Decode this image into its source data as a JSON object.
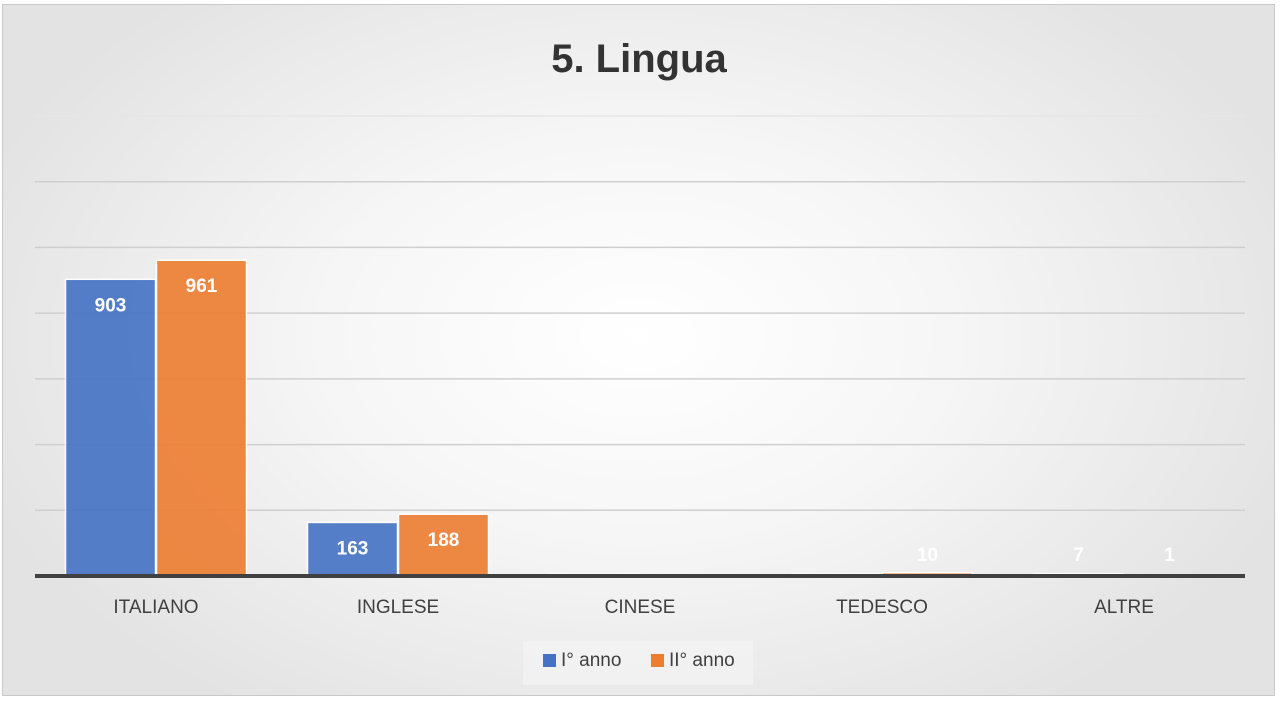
{
  "chart_data": {
    "type": "bar",
    "title": "5. Lingua",
    "xlabel": "",
    "ylabel": "",
    "categories": [
      "ITALIANO",
      "INGLESE",
      "CINESE",
      "TEDESCO",
      "ALTRE"
    ],
    "series": [
      {
        "name": "I° anno",
        "values": [
          903,
          163,
          6,
          6,
          7
        ],
        "labels": [
          "903",
          "163",
          "",
          "",
          "7"
        ],
        "color": "#4472c4"
      },
      {
        "name": "II° anno",
        "values": [
          961,
          188,
          1,
          10,
          1
        ],
        "labels": [
          "961",
          "188",
          "",
          "10",
          "1"
        ],
        "color": "#ed7d31"
      }
    ],
    "ylim": [
      0,
      1400
    ],
    "gridlines": [
      200,
      400,
      600,
      800,
      1000,
      1200,
      1400
    ],
    "grid": true,
    "y_tick_labels": false,
    "legend_position": "bottom"
  }
}
